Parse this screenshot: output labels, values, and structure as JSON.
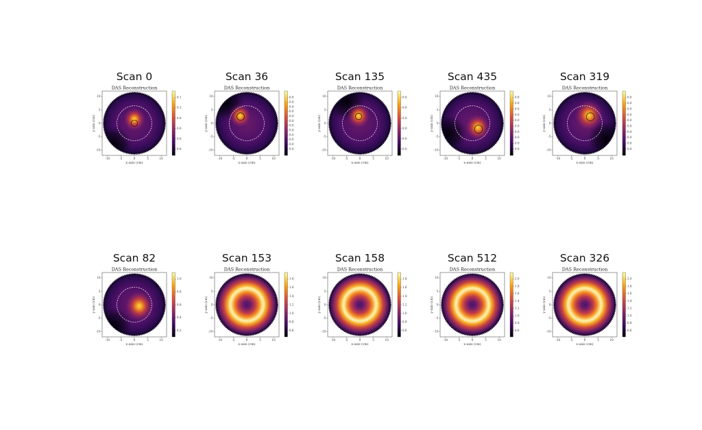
{
  "chart_data": [
    {
      "type": "heatmap",
      "scan_title": "Scan 0",
      "title": "DAS Reconstruction",
      "xlabel": "x-axis (cm)",
      "ylabel": "y-axis (cm)",
      "xticks": [
        "-10",
        "-5",
        "0",
        "5",
        "10"
      ],
      "yticks": [
        "10",
        "5",
        "0",
        "-5",
        "-10"
      ],
      "xlim": [
        -12,
        12
      ],
      "ylim": [
        -12,
        12
      ],
      "colorbar_ticks": [
        "0.1",
        "0.1",
        "0.0",
        "0.0",
        "0.0",
        "0.0"
      ],
      "pattern": "blob",
      "blob": {
        "x": 0,
        "y": 1.5,
        "r": 3.2
      },
      "target": {
        "x": 0,
        "y": 0,
        "r": 1.2
      },
      "dashed_ring_radius": 6.5,
      "shadow": {
        "x": -8,
        "y": -8
      }
    },
    {
      "type": "heatmap",
      "scan_title": "Scan 36",
      "title": "DAS Reconstruction",
      "xlabel": "x-axis (cm)",
      "ylabel": "y-axis (cm)",
      "xticks": [
        "-10",
        "-5",
        "0",
        "5",
        "10"
      ],
      "yticks": [
        "10",
        "5",
        "0",
        "-5",
        "-10"
      ],
      "xlim": [
        -12,
        12
      ],
      "ylim": [
        -12,
        12
      ],
      "colorbar_ticks": [
        "0.0",
        "0.0",
        "0.0",
        "0.0",
        "0.0",
        "0.0",
        "0.0",
        "0.0",
        "0.0",
        "0.0",
        "0.0",
        "0.0"
      ],
      "pattern": "blob",
      "blob": {
        "x": -2.5,
        "y": 2.8,
        "r": 3.2
      },
      "target": {
        "x": -2.3,
        "y": 2.5,
        "r": 1.4
      },
      "dashed_ring_radius": 6.5,
      "shadow": {
        "x": -8,
        "y": 8
      }
    },
    {
      "type": "heatmap",
      "scan_title": "Scan 135",
      "title": "DAS Reconstruction",
      "xlabel": "x-axis (cm)",
      "ylabel": "y-axis (cm)",
      "xticks": [
        "-10",
        "-5",
        "0",
        "5",
        "10"
      ],
      "yticks": [
        "10",
        "5",
        "0",
        "-5",
        "-10"
      ],
      "xlim": [
        -12,
        12
      ],
      "ylim": [
        -12,
        12
      ],
      "colorbar_ticks": [
        "0.0",
        "0.0",
        "0.0",
        "0.0",
        "0.0",
        "0.0"
      ],
      "pattern": "blob",
      "blob": {
        "x": -0.5,
        "y": 2.8,
        "r": 3.4
      },
      "target": {
        "x": -0.5,
        "y": 2.5,
        "r": 1.2
      },
      "dashed_ring_radius": 6.5,
      "shadow": {
        "x": -5,
        "y": 8
      }
    },
    {
      "type": "heatmap",
      "scan_title": "Scan 435",
      "title": "DAS Reconstruction",
      "xlabel": "x-axis (cm)",
      "ylabel": "y-axis (cm)",
      "xticks": [
        "-10",
        "-5",
        "0",
        "5",
        "10"
      ],
      "yticks": [
        "10",
        "5",
        "0",
        "-5",
        "-10"
      ],
      "xlim": [
        -12,
        12
      ],
      "ylim": [
        -12,
        12
      ],
      "colorbar_ticks": [
        "0.0",
        "0.0",
        "0.0",
        "0.0",
        "0.0",
        "0.0",
        "0.0",
        "0.0",
        "0.0",
        "0.0"
      ],
      "pattern": "blob",
      "blob": {
        "x": 2,
        "y": -1.5,
        "r": 3.6
      },
      "target": {
        "x": 2.3,
        "y": -2.2,
        "r": 1.5
      },
      "dashed_ring_radius": 6.5,
      "shadow": {
        "x": -9,
        "y": -4
      }
    },
    {
      "type": "heatmap",
      "scan_title": "Scan 319",
      "title": "DAS Reconstruction",
      "xlabel": "x-axis (cm)",
      "ylabel": "y-axis (cm)",
      "xticks": [
        "-10",
        "-5",
        "0",
        "5",
        "10"
      ],
      "yticks": [
        "10",
        "5",
        "0",
        "-5",
        "-10"
      ],
      "xlim": [
        -12,
        12
      ],
      "ylim": [
        -12,
        12
      ],
      "colorbar_ticks": [
        "0.0",
        "0.0",
        "0.0",
        "0.0",
        "0.0",
        "0.0",
        "0.0",
        "0.0",
        "0.0",
        "0.0"
      ],
      "pattern": "blob",
      "blob": {
        "x": 1.5,
        "y": 3,
        "r": 4.2
      },
      "target": {
        "x": 2.1,
        "y": 2.4,
        "r": 1.5
      },
      "dashed_ring_radius": 6.5,
      "shadow": {
        "x": 8,
        "y": -6
      }
    },
    {
      "type": "heatmap",
      "scan_title": "Scan 82",
      "title": "DAS Reconstruction",
      "xlabel": "x-axis (cm)",
      "ylabel": "y-axis (cm)",
      "xticks": [
        "-10",
        "-5",
        "0",
        "5",
        "10"
      ],
      "yticks": [
        "10",
        "5",
        "0",
        "-5",
        "-10"
      ],
      "xlim": [
        -12,
        12
      ],
      "ylim": [
        -12,
        12
      ],
      "colorbar_ticks": [
        "1.0",
        "0.8",
        "0.6",
        "0.4",
        "0.2"
      ],
      "pattern": "blob",
      "blob": {
        "x": 1.8,
        "y": -0.5,
        "r": 4.2
      },
      "target": null,
      "dashed_ring_radius": 6.5,
      "shadow": {
        "x": -8,
        "y": -8
      }
    },
    {
      "type": "heatmap",
      "scan_title": "Scan 153",
      "title": "DAS Reconstruction",
      "xlabel": "x-axis (cm)",
      "ylabel": "y-axis (cm)",
      "xticks": [
        "-10",
        "-5",
        "0",
        "5",
        "10"
      ],
      "yticks": [
        "10",
        "5",
        "0",
        "-5",
        "-10"
      ],
      "xlim": [
        -12,
        12
      ],
      "ylim": [
        -12,
        12
      ],
      "colorbar_ticks": [
        "1.8",
        "1.6",
        "1.4",
        "1.2",
        "1.0",
        "0.8",
        "0.6"
      ],
      "pattern": "ring",
      "target": null,
      "dashed_ring_radius": 6.5
    },
    {
      "type": "heatmap",
      "scan_title": "Scan 158",
      "title": "DAS Reconstruction",
      "xlabel": "x-axis (cm)",
      "ylabel": "y-axis (cm)",
      "xticks": [
        "-10",
        "-5",
        "0",
        "5",
        "10"
      ],
      "yticks": [
        "10",
        "5",
        "0",
        "-5",
        "-10"
      ],
      "xlim": [
        -12,
        12
      ],
      "ylim": [
        -12,
        12
      ],
      "colorbar_ticks": [
        "1.8",
        "1.6",
        "1.4",
        "1.2",
        "1.0",
        "0.8",
        "0.6"
      ],
      "pattern": "ring",
      "target": null,
      "dashed_ring_radius": 6.5
    },
    {
      "type": "heatmap",
      "scan_title": "Scan 512",
      "title": "DAS Reconstruction",
      "xlabel": "x-axis (cm)",
      "ylabel": "y-axis (cm)",
      "xticks": [
        "-10",
        "-5",
        "0",
        "5",
        "10"
      ],
      "yticks": [
        "10",
        "5",
        "0",
        "-5",
        "-10"
      ],
      "xlim": [
        -12,
        12
      ],
      "ylim": [
        -12,
        12
      ],
      "colorbar_ticks": [
        "2.0",
        "1.8",
        "1.6",
        "1.4",
        "1.2",
        "1.0",
        "0.8",
        "0.6"
      ],
      "pattern": "ring",
      "target": null,
      "dashed_ring_radius": 6.5
    },
    {
      "type": "heatmap",
      "scan_title": "Scan 326",
      "title": "DAS Reconstruction",
      "xlabel": "x-axis (cm)",
      "ylabel": "y-axis (cm)",
      "xticks": [
        "-10",
        "-5",
        "0",
        "5",
        "10"
      ],
      "yticks": [
        "10",
        "5",
        "0",
        "-5",
        "-10"
      ],
      "xlim": [
        -12,
        12
      ],
      "ylim": [
        -12,
        12
      ],
      "colorbar_ticks": [
        "2.0",
        "1.8",
        "1.6",
        "1.4",
        "1.2",
        "1.0",
        "0.8",
        "0.6"
      ],
      "pattern": "ring",
      "target": null,
      "dashed_ring_radius": 6.5
    }
  ],
  "colormap": {
    "name": "inferno",
    "stops": [
      "#000004",
      "#420a68",
      "#932667",
      "#dd513a",
      "#fca50a",
      "#fcffa4"
    ]
  }
}
